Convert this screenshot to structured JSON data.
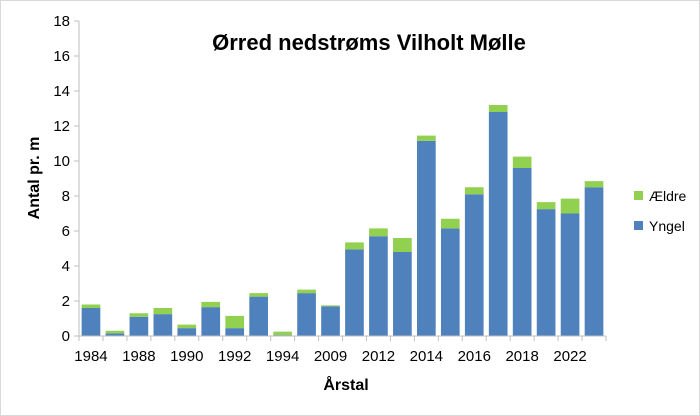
{
  "chart_data": {
    "type": "bar",
    "stacked": true,
    "title": "Ørred nedstrøms Vilholt Mølle",
    "xlabel": "Årstal",
    "ylabel": "Antal pr. m",
    "ylim": [
      0,
      18
    ],
    "y_ticks": [
      "0",
      "2",
      "4",
      "6",
      "8",
      "10",
      "12",
      "14",
      "16",
      "18"
    ],
    "grid": false,
    "legend_position": "right",
    "categories": [
      "1984",
      "1986",
      "1988",
      "1989",
      "1990",
      "1991",
      "1992",
      "1993",
      "1994",
      "1995",
      "2009",
      "2010",
      "2012",
      "2013",
      "2014",
      "2015",
      "2016",
      "2017",
      "2018",
      "2019",
      "2022",
      "2023"
    ],
    "x_tick_labels": [
      "1984",
      "",
      "1988",
      "",
      "1990",
      "",
      "1992",
      "",
      "1994",
      "",
      "2009",
      "",
      "2012",
      "",
      "2014",
      "",
      "2016",
      "",
      "2018",
      "",
      "2022",
      ""
    ],
    "series": [
      {
        "name": "Yngel",
        "color": "#4f81bd",
        "values": [
          1.6,
          0.15,
          1.1,
          1.25,
          0.45,
          1.65,
          0.45,
          2.25,
          0.05,
          2.45,
          1.7,
          4.95,
          5.7,
          4.8,
          11.15,
          6.15,
          8.1,
          12.8,
          9.6,
          7.25,
          7.0,
          8.5
        ]
      },
      {
        "name": "Ældre",
        "color": "#92d050",
        "values": [
          0.2,
          0.15,
          0.2,
          0.35,
          0.2,
          0.3,
          0.7,
          0.2,
          0.2,
          0.2,
          0.05,
          0.4,
          0.45,
          0.8,
          0.3,
          0.55,
          0.4,
          0.4,
          0.65,
          0.4,
          0.85,
          0.35
        ]
      }
    ],
    "legend_order": [
      "Ældre",
      "Yngel"
    ]
  }
}
